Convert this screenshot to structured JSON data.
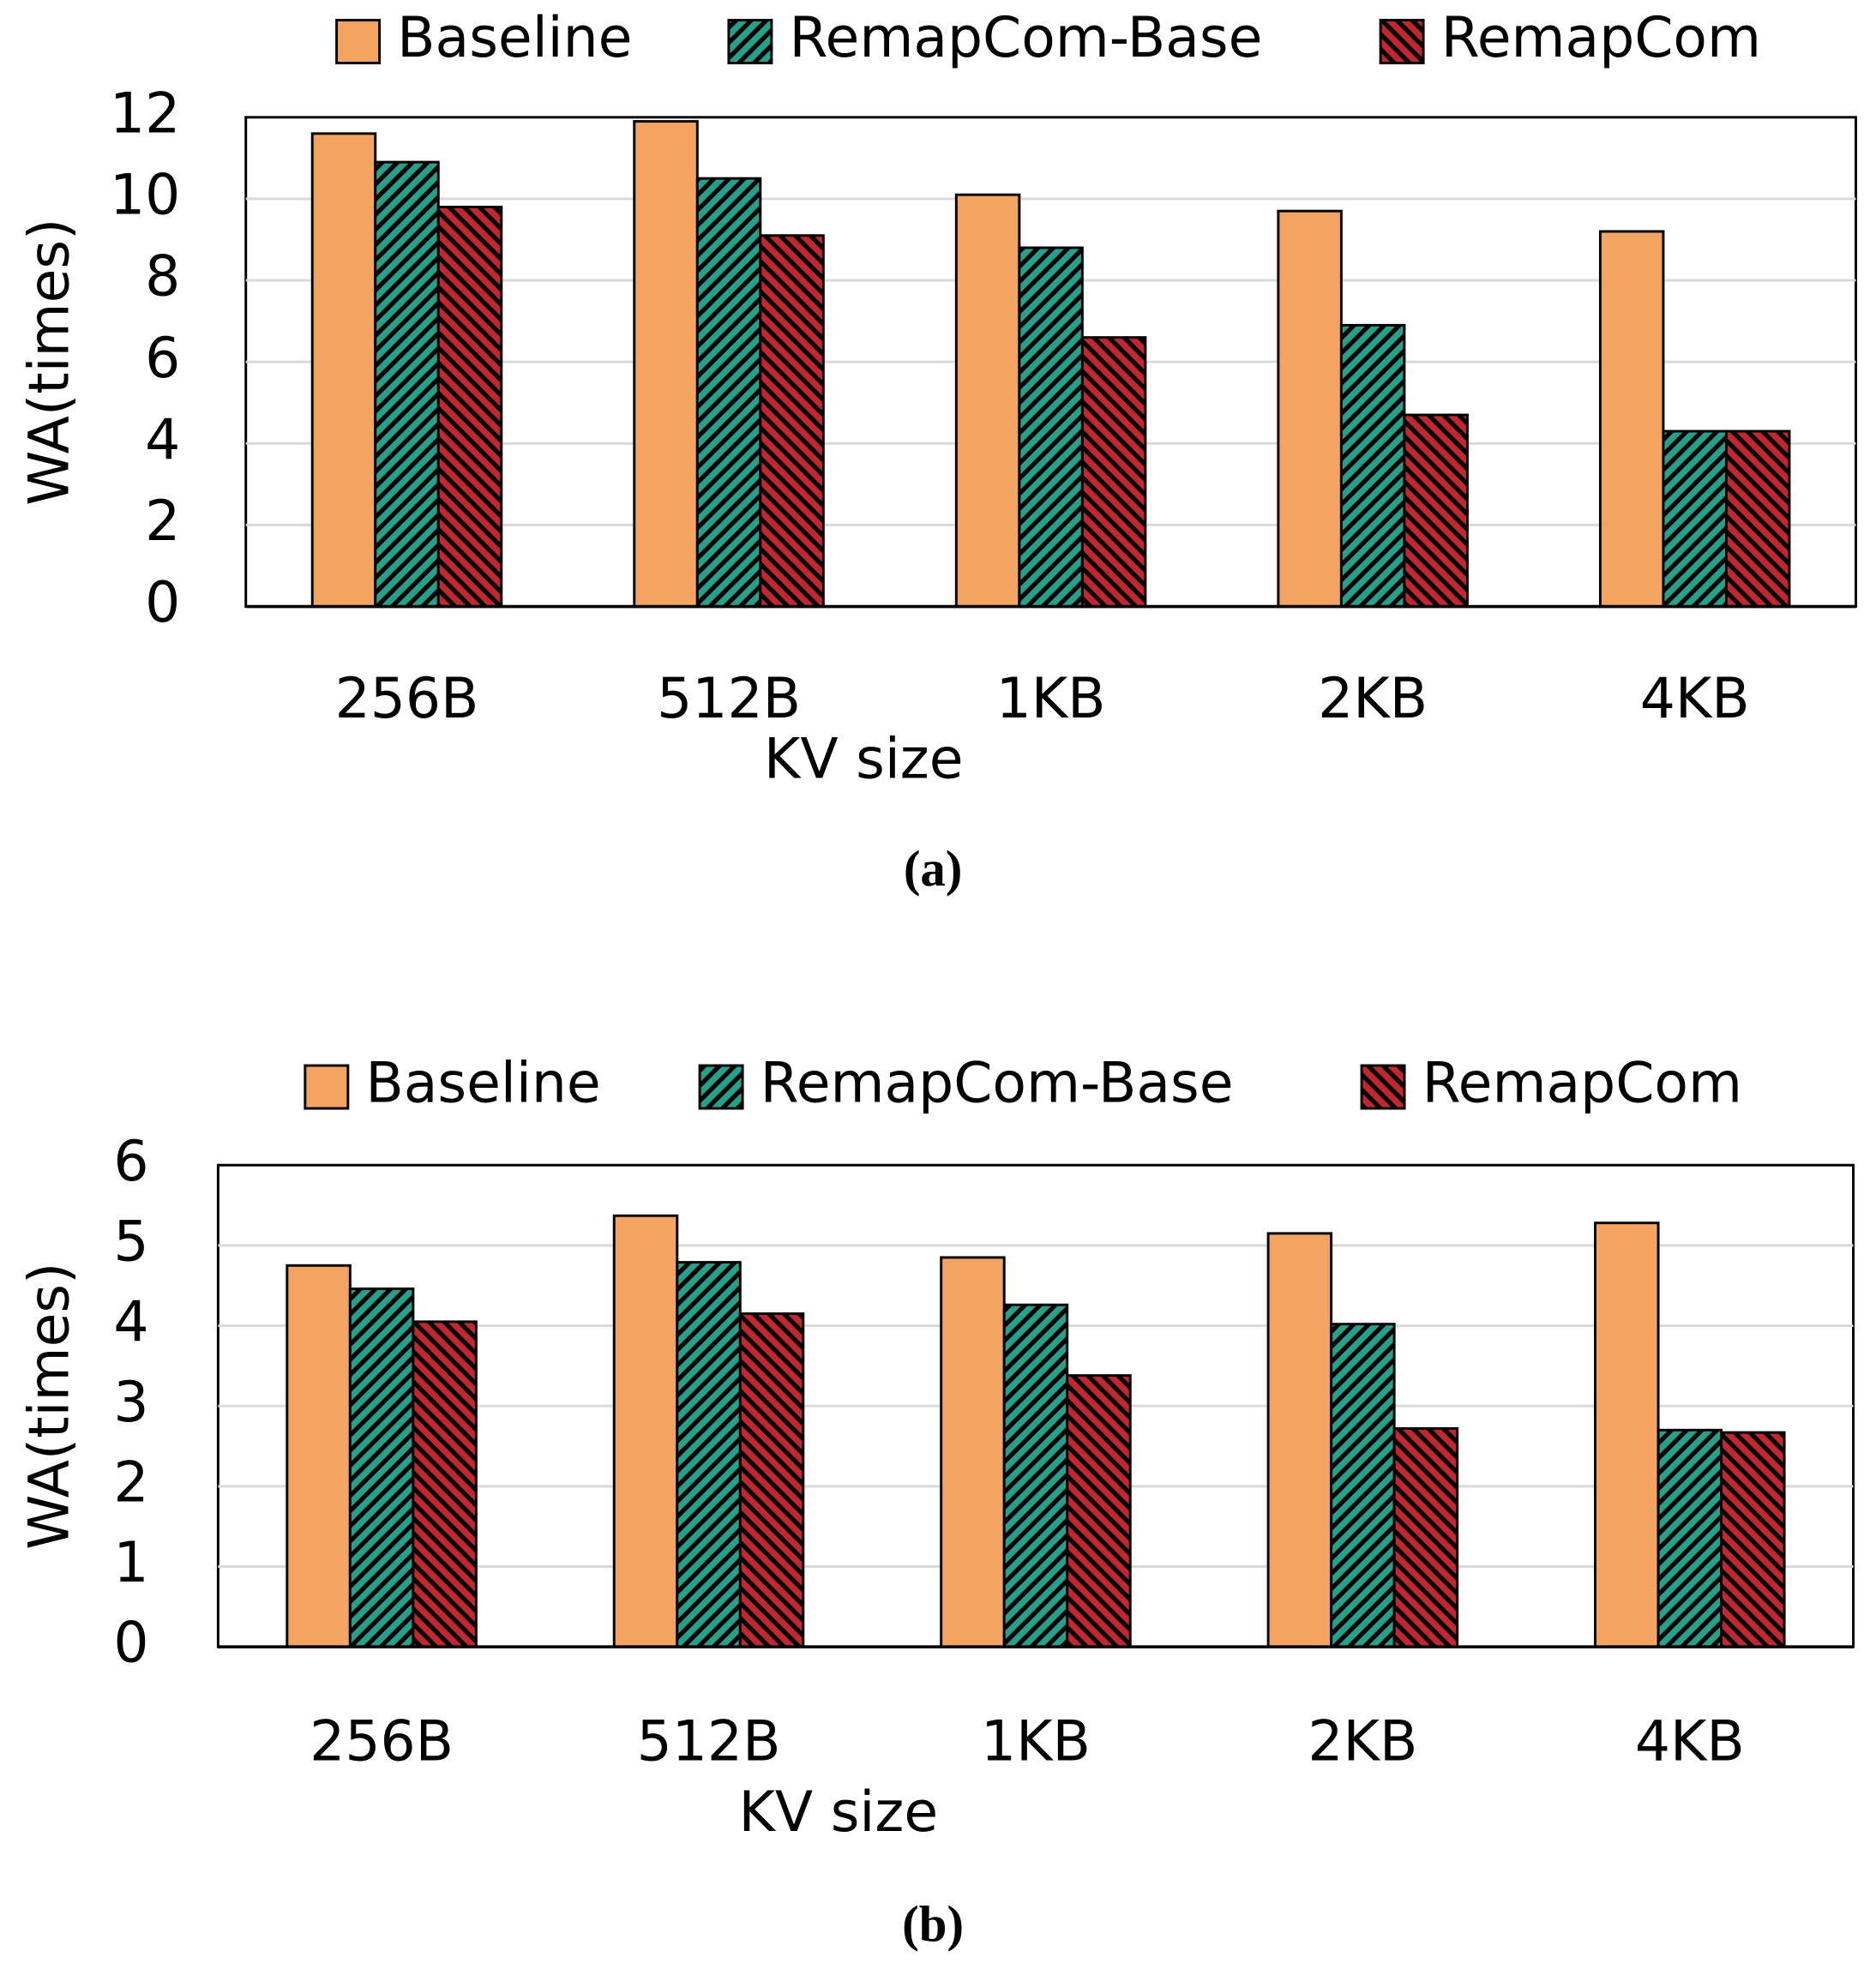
{
  "chart_data": [
    {
      "type": "bar",
      "caption": "(a)",
      "x_label": "KV size",
      "y_label": "WA(times)",
      "categories": [
        "256B",
        "512B",
        "1KB",
        "2KB",
        "4KB"
      ],
      "series": [
        {
          "name": "Baseline",
          "color": "#f4a460",
          "hatch": "none",
          "values": [
            11.6,
            11.9,
            10.1,
            9.7,
            9.2
          ]
        },
        {
          "name": "RemapCom-Base",
          "color": "#26a08a",
          "hatch": "/",
          "values": [
            10.9,
            10.5,
            8.8,
            6.9,
            4.3
          ]
        },
        {
          "name": "RemapCom",
          "color": "#c1272d",
          "hatch": "\\",
          "values": [
            9.8,
            9.1,
            6.6,
            4.7,
            4.3
          ]
        }
      ],
      "ylim": [
        0,
        12
      ],
      "yticks": [
        0,
        2,
        4,
        6,
        8,
        10,
        12
      ],
      "grid": true,
      "legend": "top"
    },
    {
      "type": "bar",
      "caption": "(b)",
      "x_label": "KV size",
      "y_label": "WA(times)",
      "categories": [
        "256B",
        "512B",
        "1KB",
        "2KB",
        "4KB"
      ],
      "series": [
        {
          "name": "Baseline",
          "color": "#f4a460",
          "hatch": "none",
          "values": [
            4.75,
            5.37,
            4.85,
            5.15,
            5.28
          ]
        },
        {
          "name": "RemapCom-Base",
          "color": "#26a08a",
          "hatch": "/",
          "values": [
            4.46,
            4.79,
            4.26,
            4.02,
            2.7
          ]
        },
        {
          "name": "RemapCom",
          "color": "#c1272d",
          "hatch": "\\",
          "values": [
            4.05,
            4.15,
            3.38,
            2.72,
            2.67
          ]
        }
      ],
      "ylim": [
        0,
        6
      ],
      "yticks": [
        0,
        1,
        2,
        3,
        4,
        5,
        6
      ],
      "grid": true,
      "legend": "top"
    }
  ]
}
